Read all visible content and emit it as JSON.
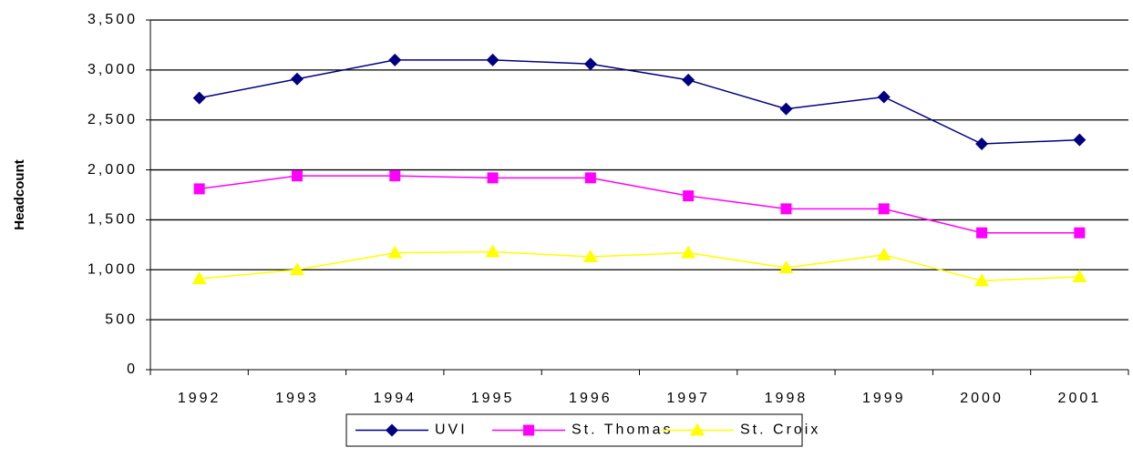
{
  "chart_data": {
    "type": "line",
    "y_label": "Headcount",
    "categories": [
      "1992",
      "1993",
      "1994",
      "1995",
      "1996",
      "1997",
      "1998",
      "1999",
      "2000",
      "2001"
    ],
    "series": [
      {
        "name": "UVI",
        "color": "#000080",
        "marker": "diamond",
        "values": [
          2720,
          2910,
          3100,
          3100,
          3060,
          2900,
          2610,
          2730,
          2260,
          2300
        ]
      },
      {
        "name": "St. Thomas",
        "color": "#ff00ff",
        "marker": "square",
        "values": [
          1810,
          1940,
          1940,
          1920,
          1920,
          1740,
          1610,
          1610,
          1370,
          1370
        ]
      },
      {
        "name": "St. Croix",
        "color": "#ffff00",
        "marker": "triangle",
        "values": [
          910,
          1000,
          1170,
          1180,
          1130,
          1170,
          1020,
          1150,
          890,
          930
        ]
      }
    ],
    "ylim": [
      0,
      3500
    ],
    "yticks": [
      0,
      500,
      {
        "value": 1000,
        "label": "1,000"
      },
      {
        "value": 1500,
        "label": "1,500"
      },
      {
        "value": 2000,
        "label": "2,000"
      },
      {
        "value": 2500,
        "label": "2,500"
      },
      {
        "value": 3000,
        "label": "3,000"
      },
      {
        "value": 3500,
        "label": "3,500"
      }
    ],
    "grid": true,
    "legend": "bottom"
  }
}
